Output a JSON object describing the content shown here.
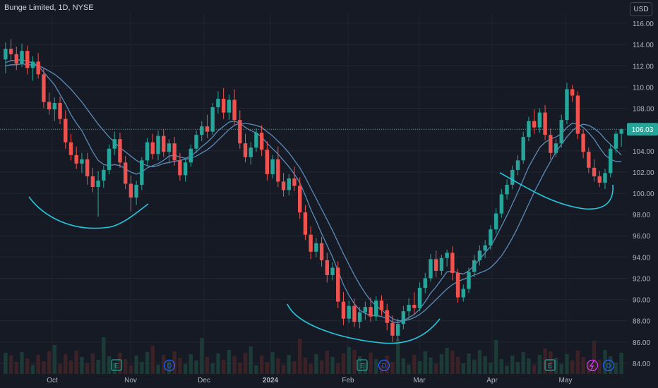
{
  "header": {
    "title": "Bunge Limited, 1D, NYSE",
    "currency": "USD"
  },
  "colors": {
    "background": "#161a25",
    "up": "#26a69a",
    "down": "#ef5350",
    "ma": "#5b8bb8",
    "annotation": "#26c6da",
    "last_price_label": "#26a69a"
  },
  "chart_data": {
    "type": "candlestick",
    "title": "Bunge Limited, 1D, NYSE",
    "ylim": [
      83,
      117
    ],
    "y_ticks": [
      "84.00",
      "86.00",
      "88.00",
      "90.00",
      "92.00",
      "94.00",
      "96.00",
      "98.00",
      "100.00",
      "102.00",
      "104.00",
      "106.00",
      "108.00",
      "110.00",
      "112.00",
      "114.00",
      "116.00"
    ],
    "y_tick_values": [
      84,
      86,
      88,
      90,
      92,
      94,
      96,
      98,
      100,
      102,
      104,
      106,
      108,
      110,
      112,
      114,
      116
    ],
    "x_ticks": [
      "Oct",
      "Nov",
      "Dec",
      "2024",
      "Feb",
      "Mar",
      "Apr",
      "May"
    ],
    "last_price": 106.03,
    "last_price_label": "106.03",
    "grid": true,
    "candles": [
      [
        112.6,
        114.2,
        111.3,
        113.6
      ],
      [
        113.6,
        114.5,
        112.4,
        113.1
      ],
      [
        113.1,
        113.8,
        111.6,
        112.2
      ],
      [
        112.2,
        114.1,
        111.9,
        113.4
      ],
      [
        113.4,
        113.9,
        111.2,
        111.8
      ],
      [
        111.8,
        112.9,
        110.6,
        112.4
      ],
      [
        112.4,
        113.2,
        110.8,
        111.2
      ],
      [
        111.2,
        111.8,
        108.0,
        108.6
      ],
      [
        108.6,
        109.5,
        107.4,
        107.9
      ],
      [
        107.9,
        109.0,
        106.8,
        108.5
      ],
      [
        108.5,
        109.1,
        106.5,
        107.0
      ],
      [
        107.0,
        107.8,
        104.2,
        104.8
      ],
      [
        104.8,
        105.6,
        103.1,
        103.6
      ],
      [
        103.6,
        104.4,
        102.3,
        102.8
      ],
      [
        102.8,
        103.8,
        101.9,
        103.2
      ],
      [
        103.2,
        103.8,
        100.8,
        101.6
      ],
      [
        101.6,
        102.4,
        100.1,
        100.6
      ],
      [
        100.6,
        102.1,
        97.8,
        101.2
      ],
      [
        101.2,
        102.6,
        100.5,
        102.2
      ],
      [
        102.2,
        104.6,
        101.8,
        104.2
      ],
      [
        104.2,
        105.8,
        103.6,
        105.1
      ],
      [
        105.1,
        105.7,
        102.4,
        102.9
      ],
      [
        102.9,
        103.5,
        100.4,
        100.9
      ],
      [
        100.9,
        101.7,
        98.3,
        99.6
      ],
      [
        99.6,
        101.2,
        98.9,
        100.8
      ],
      [
        100.8,
        103.4,
        100.3,
        103.1
      ],
      [
        103.1,
        105.2,
        102.7,
        104.8
      ],
      [
        104.8,
        105.6,
        103.2,
        103.7
      ],
      [
        103.7,
        105.9,
        103.1,
        105.4
      ],
      [
        105.4,
        106.0,
        103.4,
        103.9
      ],
      [
        103.9,
        105.1,
        102.8,
        104.7
      ],
      [
        104.7,
        105.3,
        102.6,
        103.1
      ],
      [
        103.1,
        103.8,
        101.2,
        101.7
      ],
      [
        101.7,
        103.3,
        101.1,
        102.9
      ],
      [
        102.9,
        104.6,
        102.5,
        104.2
      ],
      [
        104.2,
        105.9,
        103.8,
        105.5
      ],
      [
        105.5,
        106.8,
        104.9,
        106.3
      ],
      [
        106.3,
        107.4,
        105.2,
        105.8
      ],
      [
        105.8,
        108.5,
        105.5,
        108.1
      ],
      [
        108.1,
        109.6,
        107.5,
        108.9
      ],
      [
        108.9,
        109.9,
        107.0,
        107.6
      ],
      [
        107.6,
        109.3,
        106.9,
        108.8
      ],
      [
        108.8,
        109.8,
        106.4,
        106.9
      ],
      [
        106.9,
        107.8,
        104.2,
        104.7
      ],
      [
        104.7,
        105.6,
        102.9,
        103.4
      ],
      [
        103.4,
        104.8,
        102.7,
        104.3
      ],
      [
        104.3,
        106.1,
        103.9,
        105.7
      ],
      [
        105.7,
        106.4,
        103.5,
        104.1
      ],
      [
        104.1,
        104.9,
        101.2,
        101.8
      ],
      [
        101.8,
        103.6,
        101.4,
        103.2
      ],
      [
        103.2,
        104.4,
        100.6,
        101.1
      ],
      [
        101.1,
        101.9,
        99.7,
        100.3
      ],
      [
        100.3,
        101.8,
        99.8,
        101.4
      ],
      [
        101.4,
        102.5,
        100.2,
        100.7
      ],
      [
        100.7,
        101.5,
        97.6,
        98.2
      ],
      [
        98.2,
        98.9,
        95.6,
        96.1
      ],
      [
        96.1,
        96.9,
        93.8,
        94.5
      ],
      [
        94.5,
        95.8,
        94.0,
        95.3
      ],
      [
        95.3,
        95.9,
        93.1,
        93.7
      ],
      [
        93.7,
        94.4,
        91.6,
        92.3
      ],
      [
        92.3,
        93.5,
        91.8,
        93.0
      ],
      [
        93.0,
        93.6,
        89.2,
        89.8
      ],
      [
        89.8,
        90.7,
        87.6,
        88.2
      ],
      [
        88.2,
        89.9,
        87.8,
        89.4
      ],
      [
        89.4,
        90.1,
        87.4,
        87.9
      ],
      [
        87.9,
        89.3,
        87.3,
        88.8
      ],
      [
        88.8,
        89.8,
        88.1,
        89.3
      ],
      [
        89.3,
        90.2,
        87.9,
        88.4
      ],
      [
        88.4,
        90.3,
        88.0,
        89.9
      ],
      [
        89.9,
        90.4,
        88.5,
        89.0
      ],
      [
        89.0,
        89.6,
        87.1,
        87.8
      ],
      [
        87.8,
        88.5,
        86.0,
        86.6
      ],
      [
        86.6,
        88.2,
        86.1,
        87.7
      ],
      [
        87.7,
        89.4,
        87.2,
        88.9
      ],
      [
        88.9,
        90.1,
        88.1,
        89.5
      ],
      [
        89.5,
        90.7,
        88.6,
        89.2
      ],
      [
        89.2,
        91.6,
        88.9,
        91.1
      ],
      [
        91.1,
        92.5,
        90.6,
        92.0
      ],
      [
        92.0,
        94.3,
        91.7,
        93.8
      ],
      [
        93.8,
        94.6,
        92.1,
        92.7
      ],
      [
        92.7,
        94.2,
        92.3,
        93.9
      ],
      [
        93.9,
        94.7,
        93.1,
        94.4
      ],
      [
        94.4,
        95.0,
        91.8,
        92.5
      ],
      [
        92.5,
        92.9,
        89.7,
        90.2
      ],
      [
        90.2,
        91.4,
        89.8,
        91.0
      ],
      [
        91.0,
        93.0,
        90.6,
        92.6
      ],
      [
        92.6,
        94.2,
        92.1,
        93.7
      ],
      [
        93.7,
        95.1,
        93.2,
        94.6
      ],
      [
        94.6,
        95.6,
        93.9,
        95.1
      ],
      [
        95.1,
        97.0,
        94.7,
        96.6
      ],
      [
        96.6,
        98.6,
        96.2,
        98.1
      ],
      [
        98.1,
        100.4,
        97.7,
        99.9
      ],
      [
        99.9,
        101.3,
        99.4,
        100.8
      ],
      [
        100.8,
        102.6,
        100.4,
        102.2
      ],
      [
        102.2,
        103.6,
        101.7,
        103.1
      ],
      [
        103.1,
        105.8,
        102.8,
        105.3
      ],
      [
        105.3,
        107.2,
        104.9,
        106.8
      ],
      [
        106.8,
        107.9,
        105.6,
        106.2
      ],
      [
        106.2,
        108.0,
        105.7,
        107.6
      ],
      [
        107.6,
        108.3,
        105.0,
        105.5
      ],
      [
        105.5,
        106.1,
        103.2,
        103.8
      ],
      [
        103.8,
        105.1,
        103.4,
        104.7
      ],
      [
        104.7,
        107.4,
        104.3,
        106.9
      ],
      [
        106.9,
        110.4,
        106.5,
        109.8
      ],
      [
        109.8,
        110.2,
        108.6,
        109.2
      ],
      [
        109.2,
        109.6,
        105.1,
        105.6
      ],
      [
        105.6,
        106.0,
        103.3,
        103.9
      ],
      [
        103.9,
        104.3,
        101.9,
        102.4
      ],
      [
        102.4,
        103.2,
        101.1,
        101.6
      ],
      [
        101.6,
        102.1,
        100.6,
        101.0
      ],
      [
        101.0,
        102.3,
        100.4,
        101.9
      ],
      [
        101.9,
        104.6,
        101.5,
        104.2
      ],
      [
        104.2,
        105.9,
        103.8,
        105.6
      ],
      [
        105.6,
        106.1,
        104.4,
        106.03
      ]
    ],
    "ma_fast": [
      112.3,
      112.5,
      112.5,
      112.6,
      112.4,
      112.3,
      112.0,
      111.4,
      110.8,
      110.2,
      109.3,
      108.4,
      107.4,
      106.6,
      105.9,
      104.9,
      103.9,
      103.1,
      102.7,
      102.6,
      102.7,
      102.6,
      102.3,
      102.0,
      101.8,
      102.0,
      102.4,
      102.6,
      102.8,
      103.1,
      103.5,
      103.6,
      103.4,
      103.3,
      103.5,
      103.9,
      104.4,
      104.8,
      105.3,
      105.9,
      106.3,
      106.7,
      106.8,
      106.6,
      106.2,
      105.9,
      105.7,
      105.3,
      104.7,
      104.2,
      103.7,
      103.1,
      102.5,
      101.8,
      101.0,
      99.8,
      98.5,
      97.4,
      96.2,
      95.1,
      94.0,
      92.7,
      91.4,
      90.4,
      89.6,
      89.0,
      88.7,
      88.5,
      88.5,
      88.4,
      88.2,
      87.9,
      87.8,
      88.0,
      88.3,
      88.6,
      89.1,
      89.8,
      90.6,
      91.2,
      91.9,
      92.6,
      92.7,
      92.5,
      92.4,
      92.7,
      93.2,
      93.8,
      94.4,
      95.0,
      95.9,
      96.9,
      97.9,
      99.0,
      100.1,
      101.3,
      102.5,
      103.4,
      104.3,
      104.8,
      105.1,
      105.3,
      105.6,
      106.2,
      106.6,
      106.5,
      106.2,
      105.7,
      105.1,
      104.3,
      103.6,
      103.2,
      103.0,
      103.0
    ],
    "ma_slow": [
      112.0,
      112.1,
      112.1,
      112.2,
      112.1,
      112.1,
      112.0,
      111.8,
      111.5,
      111.2,
      110.8,
      110.3,
      109.8,
      109.2,
      108.6,
      107.9,
      107.2,
      106.5,
      105.9,
      105.3,
      104.8,
      104.3,
      103.9,
      103.5,
      103.1,
      102.8,
      102.6,
      102.5,
      102.6,
      102.8,
      102.9,
      103.0,
      103.1,
      103.2,
      103.3,
      103.5,
      103.8,
      104.1,
      104.5,
      105.0,
      105.5,
      106.0,
      106.4,
      106.6,
      106.6,
      106.5,
      106.4,
      106.2,
      105.8,
      105.4,
      104.9,
      104.4,
      103.8,
      103.1,
      102.4,
      101.5,
      100.5,
      99.5,
      98.5,
      97.5,
      96.5,
      95.4,
      94.3,
      93.3,
      92.3,
      91.4,
      90.6,
      89.9,
      89.4,
      89.0,
      88.6,
      88.2,
      88.0,
      88.0,
      88.1,
      88.3,
      88.6,
      89.0,
      89.5,
      90.0,
      90.5,
      91.0,
      91.4,
      91.7,
      91.9,
      92.1,
      92.3,
      92.5,
      92.7,
      93.0,
      93.5,
      94.1,
      94.9,
      95.8,
      96.8,
      97.9,
      99.0,
      100.1,
      101.1,
      102.1,
      103.0,
      103.9,
      104.6,
      105.3,
      105.9,
      106.3,
      106.5,
      106.4,
      106.1,
      105.7,
      105.1,
      104.6,
      104.1,
      103.6
    ]
  },
  "events": {
    "earnings_label": "E",
    "dividend_label": "D"
  }
}
